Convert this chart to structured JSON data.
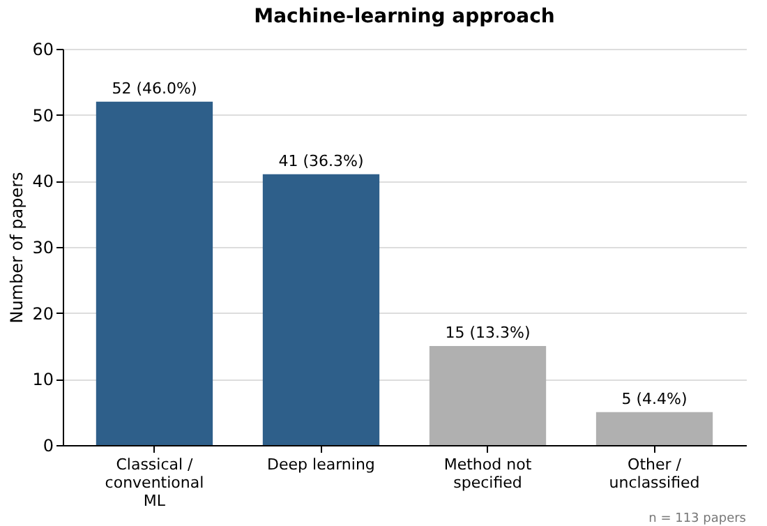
{
  "chart_data": {
    "type": "bar",
    "title": "Machine-learning approach",
    "ylabel": "Number of papers",
    "categories": [
      "Classical /\nconventional\nML",
      "Deep learning",
      "Method not\nspecified",
      "Other /\nunclassified"
    ],
    "values": [
      52,
      41,
      15,
      5
    ],
    "colors": [
      "#2e5f8a",
      "#2e5f8a",
      "#b0b0b0",
      "#b0b0b0"
    ],
    "value_labels": [
      "52 (46.0%)",
      "41 (36.3%)",
      "15 (13.3%)",
      "5 (4.4%)"
    ],
    "ylim": [
      0,
      60
    ],
    "yticks": [
      0,
      10,
      20,
      30,
      40,
      50,
      60
    ],
    "grid": "y",
    "annotations": [
      "n = 113 papers"
    ]
  }
}
